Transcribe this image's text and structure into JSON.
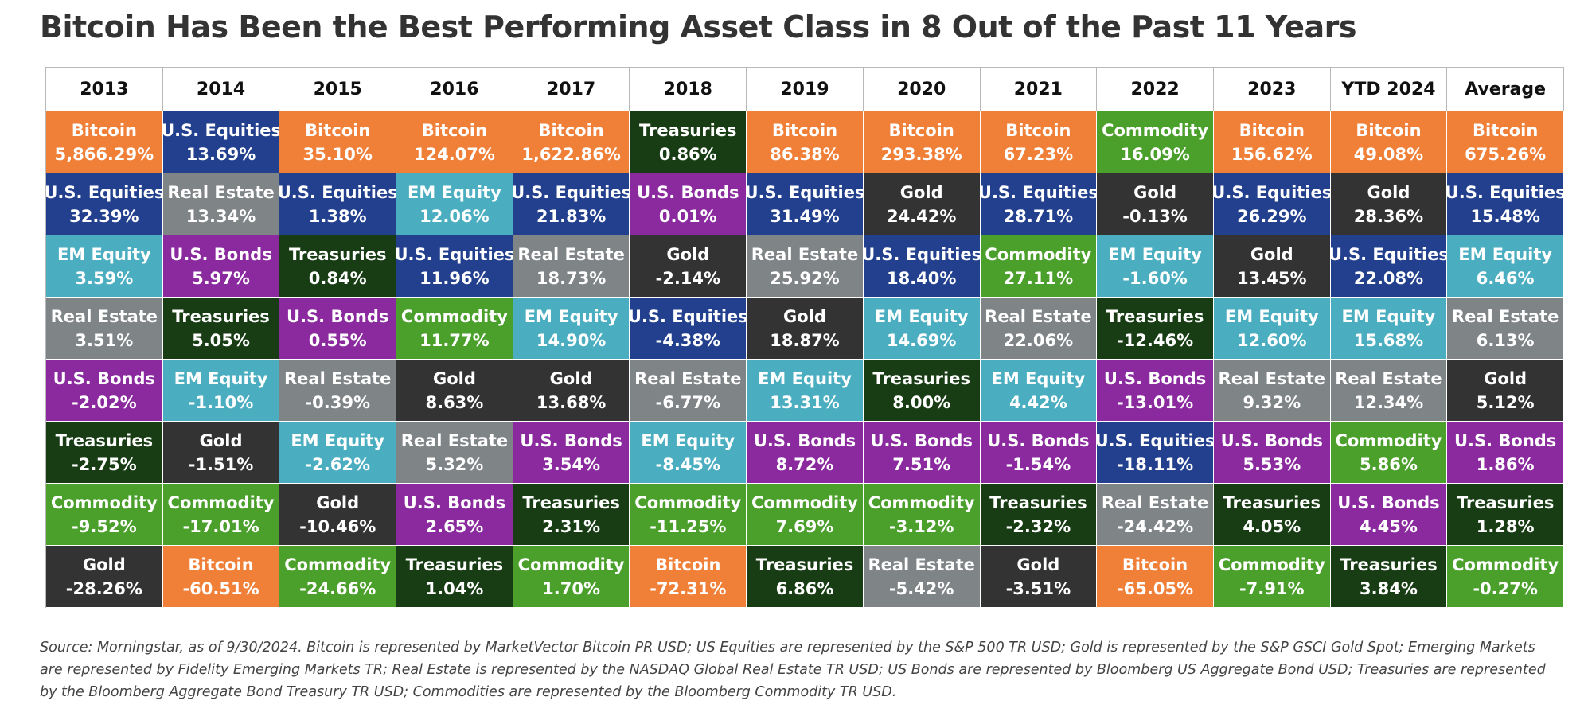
{
  "title": "Bitcoin Has Been the Best Performing Asset Class in 8 Out of the Past 11 Years",
  "source": "Source: Morningstar, as of 9/30/2024. Bitcoin is represented by MarketVector Bitcoin PR USD; US Equities are represented by the S&P 500 TR USD; Gold is represented by the S&P GSCI Gold Spot; Emerging Markets are represented by Fidelity Emerging Markets TR; Real Estate is represented by the NASDAQ Global Real Estate TR USD; US Bonds are represented by Bloomberg US Aggregate Bond USD; Treasuries are represented by the Bloomberg Aggregate Bond Treasury TR USD; Commodities are represented by the Bloomberg Commodity TR USD.",
  "colors": {
    "Bitcoin": "#f07f38",
    "U.S. Equities": "#23408e",
    "Real Estate": "#7f8487",
    "EM Equity": "#4aaec0",
    "U.S. Bonds": "#8a2a9e",
    "Treasuries": "#183d14",
    "Commodity": "#4ba02c",
    "Gold": "#333333"
  },
  "chart_data": {
    "type": "table",
    "columns": [
      "2013",
      "2014",
      "2015",
      "2016",
      "2017",
      "2018",
      "2019",
      "2020",
      "2021",
      "2022",
      "2023",
      "YTD 2024",
      "Average"
    ],
    "rows": [
      [
        {
          "asset": "Bitcoin",
          "value": "5,866.29%"
        },
        {
          "asset": "U.S. Equities",
          "value": "13.69%"
        },
        {
          "asset": "Bitcoin",
          "value": "35.10%"
        },
        {
          "asset": "Bitcoin",
          "value": "124.07%"
        },
        {
          "asset": "Bitcoin",
          "value": "1,622.86%"
        },
        {
          "asset": "Treasuries",
          "value": "0.86%"
        },
        {
          "asset": "Bitcoin",
          "value": "86.38%"
        },
        {
          "asset": "Bitcoin",
          "value": "293.38%"
        },
        {
          "asset": "Bitcoin",
          "value": "67.23%"
        },
        {
          "asset": "Commodity",
          "value": "16.09%"
        },
        {
          "asset": "Bitcoin",
          "value": "156.62%"
        },
        {
          "asset": "Bitcoin",
          "value": "49.08%"
        },
        {
          "asset": "Bitcoin",
          "value": "675.26%"
        }
      ],
      [
        {
          "asset": "U.S. Equities",
          "value": "32.39%"
        },
        {
          "asset": "Real Estate",
          "value": "13.34%"
        },
        {
          "asset": "U.S. Equities",
          "value": "1.38%"
        },
        {
          "asset": "EM Equity",
          "value": "12.06%"
        },
        {
          "asset": "U.S. Equities",
          "value": "21.83%"
        },
        {
          "asset": "U.S. Bonds",
          "value": "0.01%"
        },
        {
          "asset": "U.S. Equities",
          "value": "31.49%"
        },
        {
          "asset": "Gold",
          "value": "24.42%"
        },
        {
          "asset": "U.S. Equities",
          "value": "28.71%"
        },
        {
          "asset": "Gold",
          "value": "-0.13%"
        },
        {
          "asset": "U.S. Equities",
          "value": "26.29%"
        },
        {
          "asset": "Gold",
          "value": "28.36%"
        },
        {
          "asset": "U.S. Equities",
          "value": "15.48%"
        }
      ],
      [
        {
          "asset": "EM Equity",
          "value": "3.59%"
        },
        {
          "asset": "U.S. Bonds",
          "value": "5.97%"
        },
        {
          "asset": "Treasuries",
          "value": "0.84%"
        },
        {
          "asset": "U.S. Equities",
          "value": "11.96%"
        },
        {
          "asset": "Real Estate",
          "value": "18.73%"
        },
        {
          "asset": "Gold",
          "value": "-2.14%"
        },
        {
          "asset": "Real Estate",
          "value": "25.92%"
        },
        {
          "asset": "U.S. Equities",
          "value": "18.40%"
        },
        {
          "asset": "Commodity",
          "value": "27.11%"
        },
        {
          "asset": "EM Equity",
          "value": "-1.60%"
        },
        {
          "asset": "Gold",
          "value": "13.45%"
        },
        {
          "asset": "U.S. Equities",
          "value": "22.08%"
        },
        {
          "asset": "EM Equity",
          "value": "6.46%"
        }
      ],
      [
        {
          "asset": "Real Estate",
          "value": "3.51%"
        },
        {
          "asset": "Treasuries",
          "value": "5.05%"
        },
        {
          "asset": "U.S. Bonds",
          "value": "0.55%"
        },
        {
          "asset": "Commodity",
          "value": "11.77%"
        },
        {
          "asset": "EM Equity",
          "value": "14.90%"
        },
        {
          "asset": "U.S. Equities",
          "value": "-4.38%"
        },
        {
          "asset": "Gold",
          "value": "18.87%"
        },
        {
          "asset": "EM Equity",
          "value": "14.69%"
        },
        {
          "asset": "Real Estate",
          "value": "22.06%"
        },
        {
          "asset": "Treasuries",
          "value": "-12.46%"
        },
        {
          "asset": "EM Equity",
          "value": "12.60%"
        },
        {
          "asset": "EM Equity",
          "value": "15.68%"
        },
        {
          "asset": "Real Estate",
          "value": "6.13%"
        }
      ],
      [
        {
          "asset": "U.S. Bonds",
          "value": "-2.02%"
        },
        {
          "asset": "EM Equity",
          "value": "-1.10%"
        },
        {
          "asset": "Real Estate",
          "value": "-0.39%"
        },
        {
          "asset": "Gold",
          "value": "8.63%"
        },
        {
          "asset": "Gold",
          "value": "13.68%"
        },
        {
          "asset": "Real Estate",
          "value": "-6.77%"
        },
        {
          "asset": "EM Equity",
          "value": "13.31%"
        },
        {
          "asset": "Treasuries",
          "value": "8.00%"
        },
        {
          "asset": "EM Equity",
          "value": "4.42%"
        },
        {
          "asset": "U.S. Bonds",
          "value": "-13.01%"
        },
        {
          "asset": "Real Estate",
          "value": "9.32%"
        },
        {
          "asset": "Real Estate",
          "value": "12.34%"
        },
        {
          "asset": "Gold",
          "value": "5.12%"
        }
      ],
      [
        {
          "asset": "Treasuries",
          "value": "-2.75%"
        },
        {
          "asset": "Gold",
          "value": "-1.51%"
        },
        {
          "asset": "EM Equity",
          "value": "-2.62%"
        },
        {
          "asset": "Real Estate",
          "value": "5.32%"
        },
        {
          "asset": "U.S. Bonds",
          "value": "3.54%"
        },
        {
          "asset": "EM Equity",
          "value": "-8.45%"
        },
        {
          "asset": "U.S. Bonds",
          "value": "8.72%"
        },
        {
          "asset": "U.S. Bonds",
          "value": "7.51%"
        },
        {
          "asset": "U.S. Bonds",
          "value": "-1.54%"
        },
        {
          "asset": "U.S. Equities",
          "value": "-18.11%"
        },
        {
          "asset": "U.S. Bonds",
          "value": "5.53%"
        },
        {
          "asset": "Commodity",
          "value": "5.86%"
        },
        {
          "asset": "U.S. Bonds",
          "value": "1.86%"
        }
      ],
      [
        {
          "asset": "Commodity",
          "value": "-9.52%"
        },
        {
          "asset": "Commodity",
          "value": "-17.01%"
        },
        {
          "asset": "Gold",
          "value": "-10.46%"
        },
        {
          "asset": "U.S. Bonds",
          "value": "2.65%"
        },
        {
          "asset": "Treasuries",
          "value": "2.31%"
        },
        {
          "asset": "Commodity",
          "value": "-11.25%"
        },
        {
          "asset": "Commodity",
          "value": "7.69%"
        },
        {
          "asset": "Commodity",
          "value": "-3.12%"
        },
        {
          "asset": "Treasuries",
          "value": "-2.32%"
        },
        {
          "asset": "Real Estate",
          "value": "-24.42%"
        },
        {
          "asset": "Treasuries",
          "value": "4.05%"
        },
        {
          "asset": "U.S. Bonds",
          "value": "4.45%"
        },
        {
          "asset": "Treasuries",
          "value": "1.28%"
        }
      ],
      [
        {
          "asset": "Gold",
          "value": "-28.26%"
        },
        {
          "asset": "Bitcoin",
          "value": "-60.51%"
        },
        {
          "asset": "Commodity",
          "value": "-24.66%"
        },
        {
          "asset": "Treasuries",
          "value": "1.04%"
        },
        {
          "asset": "Commodity",
          "value": "1.70%"
        },
        {
          "asset": "Bitcoin",
          "value": "-72.31%"
        },
        {
          "asset": "Treasuries",
          "value": "6.86%"
        },
        {
          "asset": "Real Estate",
          "value": "-5.42%"
        },
        {
          "asset": "Gold",
          "value": "-3.51%"
        },
        {
          "asset": "Bitcoin",
          "value": "-65.05%"
        },
        {
          "asset": "Commodity",
          "value": "-7.91%"
        },
        {
          "asset": "Treasuries",
          "value": "3.84%"
        },
        {
          "asset": "Commodity",
          "value": "-0.27%"
        }
      ]
    ]
  }
}
